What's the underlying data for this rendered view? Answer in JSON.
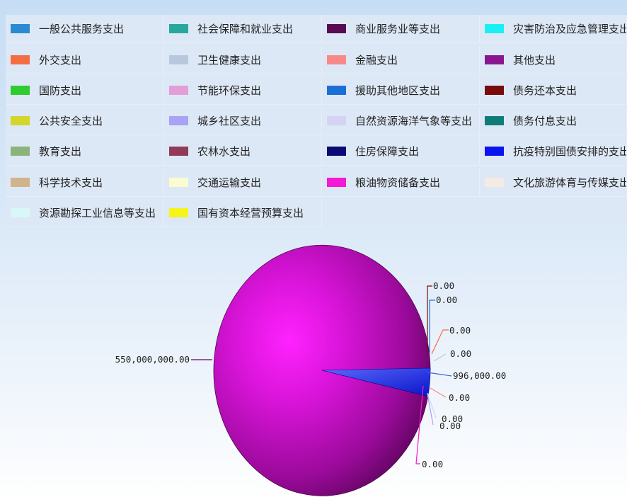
{
  "chart_data": {
    "type": "pie",
    "legend_position": "top",
    "series": [
      {
        "name": "一般公共服务支出",
        "color": "#2a8ad4"
      },
      {
        "name": "社会保障和就业支出",
        "color": "#2aa79c"
      },
      {
        "name": "商业服务业等支出",
        "color": "#5a0a52"
      },
      {
        "name": "灾害防治及应急管理支出",
        "color": "#19f0f4"
      },
      {
        "name": "外交支出",
        "color": "#f46d43"
      },
      {
        "name": "卫生健康支出",
        "color": "#b8c8dc"
      },
      {
        "name": "金融支出",
        "color": "#f78a86"
      },
      {
        "name": "其他支出",
        "color": "#8a1591"
      },
      {
        "name": "国防支出",
        "color": "#2ecc2e"
      },
      {
        "name": "节能环保支出",
        "color": "#e39ed6"
      },
      {
        "name": "援助其他地区支出",
        "color": "#1d6fd8"
      },
      {
        "name": "债务还本支出",
        "color": "#7a0b0b"
      },
      {
        "name": "公共安全支出",
        "color": "#d4d62b"
      },
      {
        "name": "城乡社区支出",
        "color": "#a8a3f4"
      },
      {
        "name": "自然资源海洋气象等支出",
        "color": "#d5d3f4"
      },
      {
        "name": "债务付息支出",
        "color": "#0e7d78"
      },
      {
        "name": "教育支出",
        "color": "#8bb37d"
      },
      {
        "name": "农林水支出",
        "color": "#913a5a"
      },
      {
        "name": "住房保障支出",
        "color": "#0a0a74"
      },
      {
        "name": "抗疫特别国债安排的支出",
        "color": "#0a14f0"
      },
      {
        "name": "科学技术支出",
        "color": "#d0b48b"
      },
      {
        "name": "交通运输支出",
        "color": "#fbfbd0"
      },
      {
        "name": "粮油物资储备支出",
        "color": "#f41ad4"
      },
      {
        "name": "文化旅游体育与传媒支出",
        "color": "#f5ebe3"
      },
      {
        "name": "资源勘探工业信息等支出",
        "color": "#d8f8f8"
      },
      {
        "name": "国有资本经营预算支出",
        "color": "#f6f41a"
      }
    ],
    "slices": [
      {
        "series": "其他支出",
        "value": 550000000.0,
        "label": "550,000,000.00"
      },
      {
        "series": "抗疫特别国债安排的支出",
        "value": 996000.0,
        "label": "996,000.00"
      },
      {
        "series": "债务还本支出",
        "value": 0.0,
        "label": "0.00"
      },
      {
        "series": "援助其他地区支出",
        "value": 0.0,
        "label": "0.00"
      },
      {
        "series": "外交支出",
        "value": 0.0,
        "label": "0.00"
      },
      {
        "series": "卫生健康支出",
        "value": 0.0,
        "label": "0.00"
      },
      {
        "series": "金融支出",
        "value": 0.0,
        "label": "0.00"
      },
      {
        "series": "自然资源海洋气象等支出",
        "value": 0.0,
        "label": "0.00"
      },
      {
        "series": "城乡社区支出",
        "value": 0.0,
        "label": "0.00"
      },
      {
        "series": "粮油物资储备支出",
        "value": 0.0,
        "label": "0.00"
      }
    ]
  }
}
